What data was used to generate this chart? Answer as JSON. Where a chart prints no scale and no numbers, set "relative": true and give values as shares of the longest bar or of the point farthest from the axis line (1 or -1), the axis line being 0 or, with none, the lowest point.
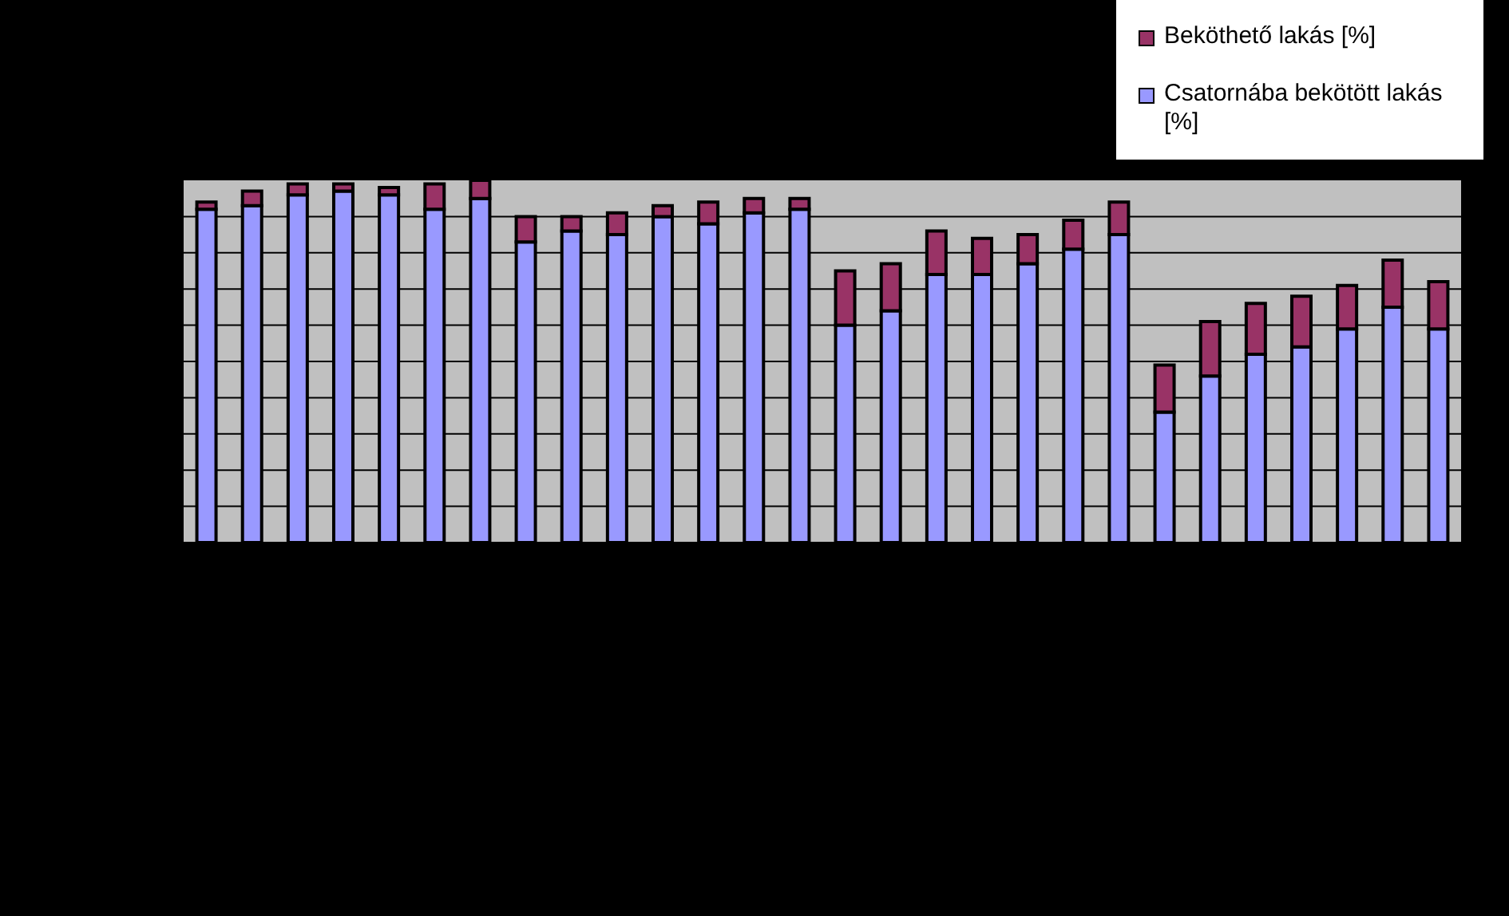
{
  "chart_data": {
    "type": "bar",
    "relative": true,
    "stacked": true,
    "grid": "y",
    "legend": "top right",
    "categories": [
      null,
      null,
      null,
      null,
      null,
      null,
      null,
      null,
      null,
      null,
      null,
      null,
      null,
      null,
      null,
      null,
      null,
      null,
      null,
      null,
      null,
      null,
      null,
      null,
      null,
      null,
      null,
      null
    ],
    "series": [
      {
        "name": "Csatornába bekötött lakás [%]",
        "color": "#9999ff",
        "values": [
          0.92,
          0.93,
          0.96,
          0.97,
          0.96,
          0.92,
          0.95,
          0.83,
          0.86,
          0.85,
          0.9,
          0.88,
          0.91,
          0.92,
          0.6,
          0.64,
          0.74,
          0.74,
          0.77,
          0.81,
          0.85,
          0.36,
          0.46,
          0.52,
          0.54,
          0.59,
          0.65,
          0.59
        ]
      },
      {
        "name": "Beköthető lakás [%]",
        "color": "#993366",
        "values": [
          0.02,
          0.04,
          0.03,
          0.02,
          0.02,
          0.07,
          0.05,
          0.07,
          0.04,
          0.06,
          0.03,
          0.06,
          0.04,
          0.03,
          0.15,
          0.13,
          0.12,
          0.1,
          0.08,
          0.08,
          0.09,
          0.13,
          0.15,
          0.14,
          0.14,
          0.12,
          0.13,
          0.13
        ]
      }
    ]
  }
}
